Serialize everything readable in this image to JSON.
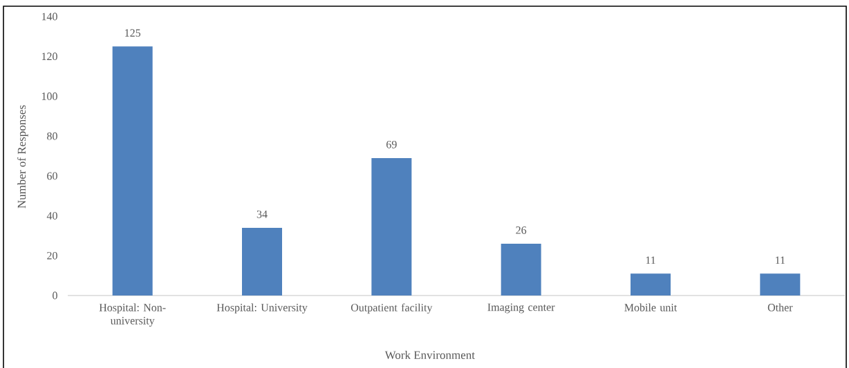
{
  "chart_data": {
    "type": "bar",
    "xlabel": "Work Environment",
    "ylabel": "Number of Responses",
    "categories": [
      "Hospital: Non-university",
      "Hospital: University",
      "Outpatient facility",
      "Imaging center",
      "Mobile unit",
      "Other"
    ],
    "values": [
      125,
      34,
      69,
      26,
      11,
      11
    ],
    "color": "#4f81bd",
    "ylim": [
      0,
      140
    ],
    "yticks": [
      0,
      20,
      40,
      60,
      80,
      100,
      120,
      140
    ],
    "data_labels": true
  }
}
